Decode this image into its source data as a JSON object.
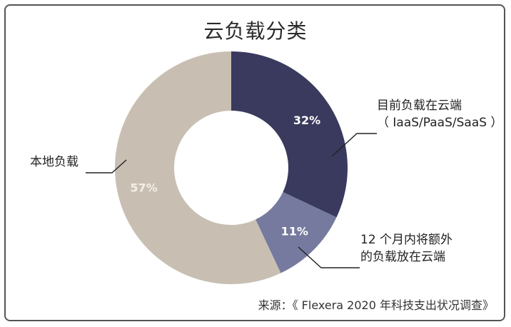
{
  "chart_data": {
    "type": "pie",
    "title": "云负载分类",
    "slices": [
      {
        "label": "目前负载在云端（IaaS/PaaS/SaaS）",
        "value": 32,
        "value_label": "32%",
        "color": "#3a3a5e",
        "text_color": "#ffffff"
      },
      {
        "label": "12 个月内将额外的负载放在云端",
        "value": 11,
        "value_label": "11%",
        "color": "#767a9e",
        "text_color": "#ffffff"
      },
      {
        "label": "本地负载",
        "value": 57,
        "value_label": "57%",
        "color": "#c8bfb2",
        "text_color": "#f3eee8"
      }
    ],
    "donut": true
  },
  "labels": {
    "cloud_line1": "目前负载在云端",
    "cloud_line2": "（ IaaS/PaaS/SaaS ）",
    "future_line1": "12 个月内将额外",
    "future_line2": "的负载放在云端",
    "local": "本地负载"
  },
  "source": "来源：《 Flexera 2020 年科技支出状况调查》"
}
